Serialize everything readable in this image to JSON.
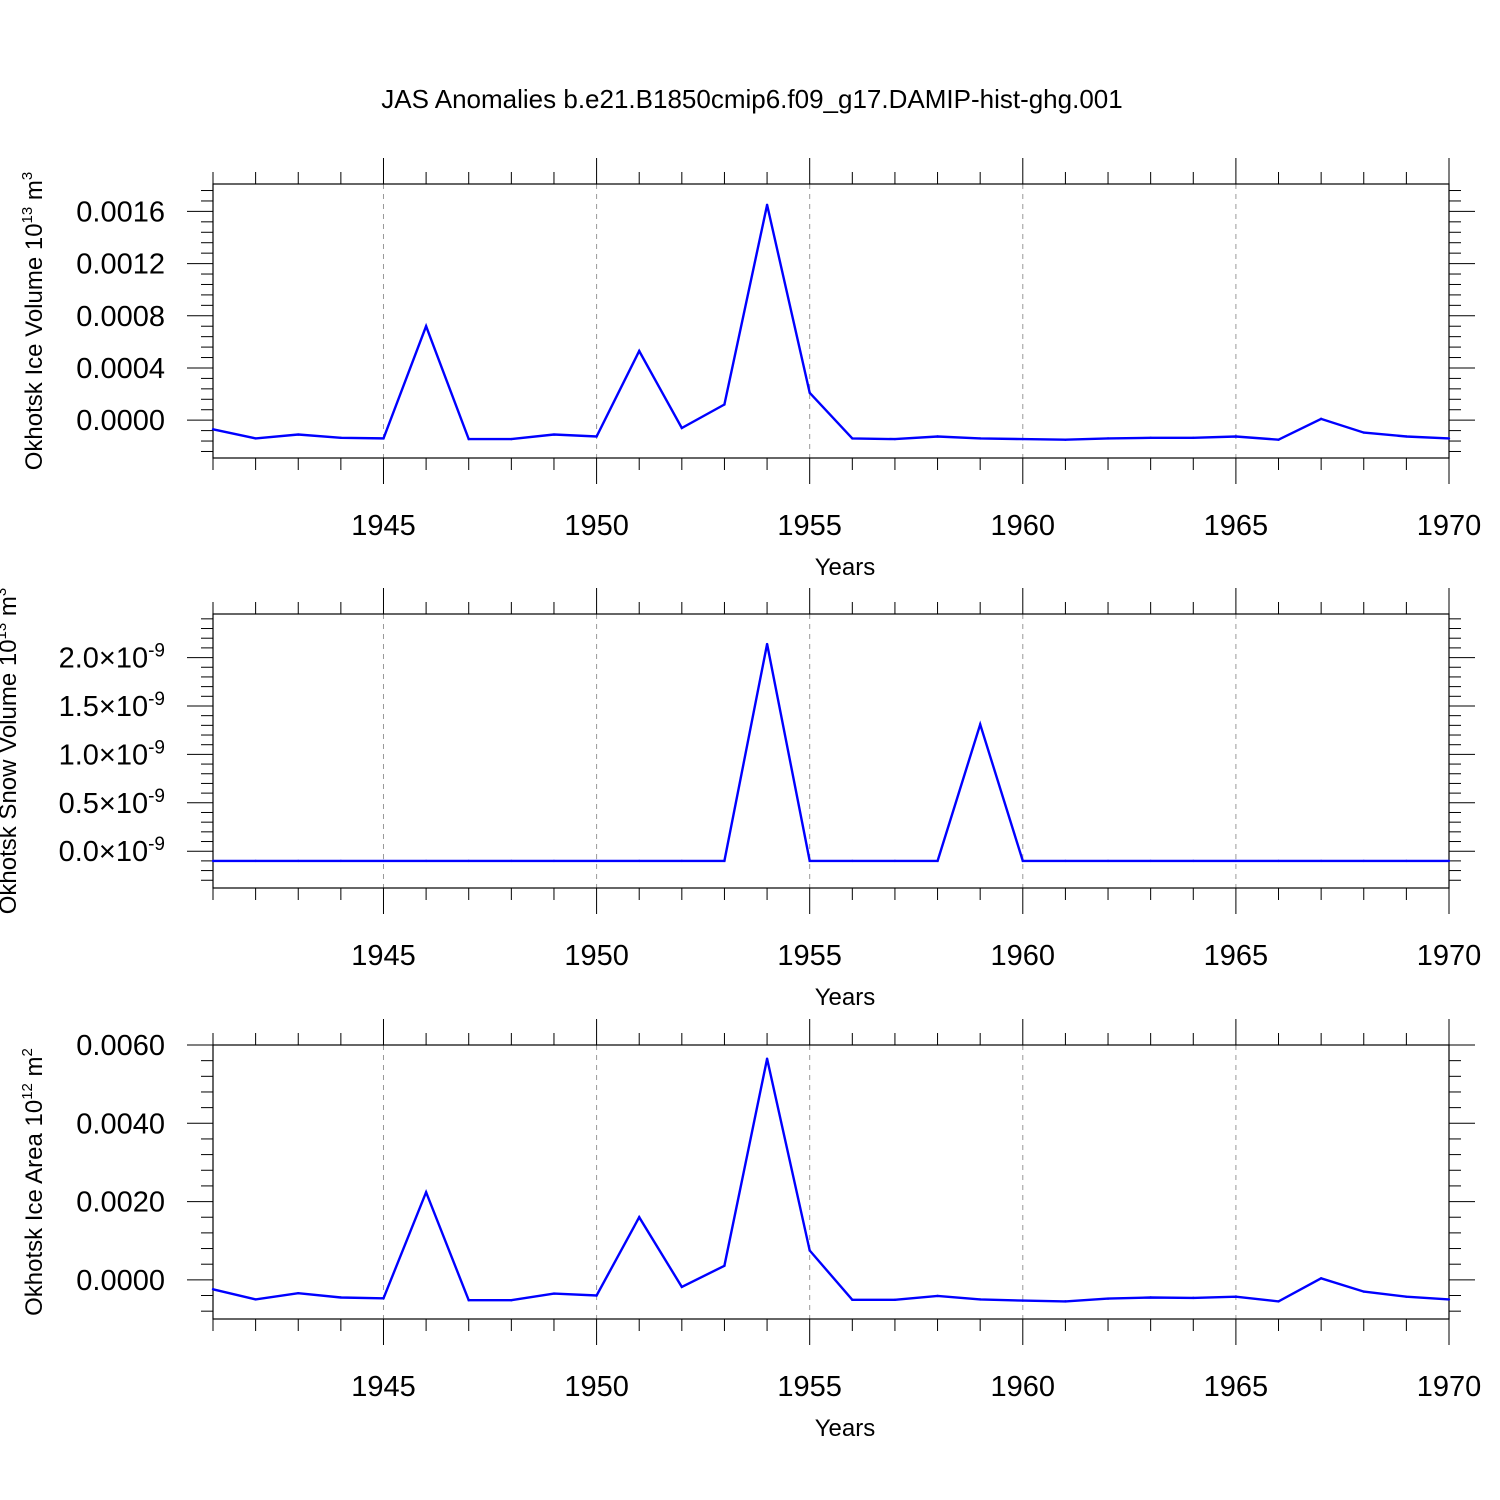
{
  "title": "JAS Anomalies b.e21.B1850cmip6.f09_g17.DAMIP-hist-ghg.001",
  "line_color": "#0000ff",
  "chart_data": [
    {
      "type": "line",
      "xlabel": "Years",
      "ylabel": "Okhotsk Ice Volume 10",
      "ylabel_sup": "13",
      "ylabel_unit": " m",
      "ylabel_unit_sup": "3",
      "xlim": [
        1941,
        1970
      ],
      "ylim": [
        -0.00029,
        0.00181
      ],
      "xticks": [
        1945,
        1950,
        1955,
        1960,
        1965,
        1970
      ],
      "yticks": [
        {
          "value": 0.0016,
          "label": "0.0016"
        },
        {
          "value": 0.0012,
          "label": "0.0012"
        },
        {
          "value": 0.0008,
          "label": "0.0008"
        },
        {
          "value": 0.0004,
          "label": "0.0004"
        },
        {
          "value": 0.0,
          "label": "0.0000"
        }
      ],
      "grid": "dashed-vertical",
      "x": [
        1941,
        1942,
        1943,
        1944,
        1945,
        1946,
        1947,
        1948,
        1949,
        1950,
        1951,
        1952,
        1953,
        1954,
        1955,
        1956,
        1957,
        1958,
        1959,
        1960,
        1961,
        1962,
        1963,
        1964,
        1965,
        1966,
        1967,
        1968,
        1969,
        1970
      ],
      "values": [
        -7e-05,
        -0.00014,
        -0.00011,
        -0.000135,
        -0.00014,
        0.00072,
        -0.000145,
        -0.000145,
        -0.00011,
        -0.000125,
        0.00053,
        -6e-05,
        0.00012,
        0.00165,
        0.00021,
        -0.00014,
        -0.000145,
        -0.000125,
        -0.00014,
        -0.000145,
        -0.00015,
        -0.00014,
        -0.000135,
        -0.000135,
        -0.000125,
        -0.00015,
        1e-05,
        -9.5e-05,
        -0.000125,
        -0.00014
      ]
    },
    {
      "type": "line",
      "xlabel": "Years",
      "ylabel": "Okhotsk Snow Volume 10",
      "ylabel_sup": "13",
      "ylabel_unit": " m",
      "ylabel_unit_sup": "3",
      "xlim": [
        1941,
        1970
      ],
      "ylim": [
        -3.8e-10,
        2.45e-09
      ],
      "xticks": [
        1945,
        1950,
        1955,
        1960,
        1965,
        1970
      ],
      "yticks": [
        {
          "value": 2e-09,
          "label": "2.0×10",
          "sup": "-9"
        },
        {
          "value": 1.5e-09,
          "label": "1.5×10",
          "sup": "-9"
        },
        {
          "value": 1e-09,
          "label": "1.0×10",
          "sup": "-9"
        },
        {
          "value": 5e-10,
          "label": "0.5×10",
          "sup": "-9"
        },
        {
          "value": 0.0,
          "label": "0.0×10",
          "sup": "-9"
        }
      ],
      "grid": "dashed-vertical",
      "x": [
        1941,
        1942,
        1943,
        1944,
        1945,
        1946,
        1947,
        1948,
        1949,
        1950,
        1951,
        1952,
        1953,
        1954,
        1955,
        1956,
        1957,
        1958,
        1959,
        1960,
        1961,
        1962,
        1963,
        1964,
        1965,
        1966,
        1967,
        1968,
        1969,
        1970
      ],
      "values": [
        -1e-10,
        -1e-10,
        -1e-10,
        -1e-10,
        -1e-10,
        -1e-10,
        -1e-10,
        -1e-10,
        -1e-10,
        -1e-10,
        -1e-10,
        -1e-10,
        -1e-10,
        2.14e-09,
        -1e-10,
        -1e-10,
        -1e-10,
        -1e-10,
        1.31e-09,
        -1e-10,
        -1e-10,
        -1e-10,
        -1e-10,
        -1e-10,
        -1e-10,
        -1e-10,
        -1e-10,
        -1e-10,
        -1e-10,
        -1e-10
      ]
    },
    {
      "type": "line",
      "xlabel": "Years",
      "ylabel": "Okhotsk Ice Area 10",
      "ylabel_sup": "12",
      "ylabel_unit": " m",
      "ylabel_unit_sup": "2",
      "xlim": [
        1941,
        1970
      ],
      "ylim": [
        -0.001,
        0.006
      ],
      "xticks": [
        1945,
        1950,
        1955,
        1960,
        1965,
        1970
      ],
      "yticks": [
        {
          "value": 0.006,
          "label": "0.0060"
        },
        {
          "value": 0.004,
          "label": "0.0040"
        },
        {
          "value": 0.002,
          "label": "0.0020"
        },
        {
          "value": 0.0,
          "label": "0.0000"
        }
      ],
      "grid": "dashed-vertical",
      "x": [
        1941,
        1942,
        1943,
        1944,
        1945,
        1946,
        1947,
        1948,
        1949,
        1950,
        1951,
        1952,
        1953,
        1954,
        1955,
        1956,
        1957,
        1958,
        1959,
        1960,
        1961,
        1962,
        1963,
        1964,
        1965,
        1966,
        1967,
        1968,
        1969,
        1970
      ],
      "values": [
        -0.00024,
        -0.0005,
        -0.00034,
        -0.00045,
        -0.00047,
        0.00224,
        -0.00052,
        -0.00052,
        -0.00035,
        -0.0004,
        0.0016,
        -0.00018,
        0.00036,
        0.00565,
        0.00075,
        -0.00051,
        -0.00051,
        -0.00041,
        -0.0005,
        -0.00053,
        -0.00055,
        -0.00048,
        -0.00045,
        -0.00046,
        -0.00043,
        -0.00055,
        4e-05,
        -0.0003,
        -0.00043,
        -0.0005
      ]
    }
  ]
}
